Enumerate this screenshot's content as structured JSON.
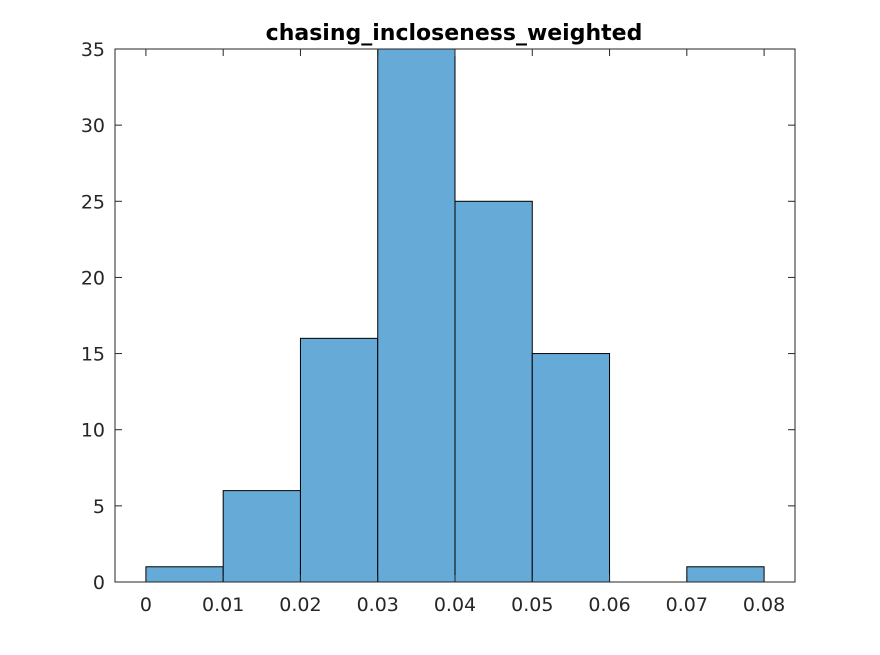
{
  "chart_data": {
    "type": "bar",
    "title": "chasing_incloseness_weighted",
    "xlabel": "",
    "ylabel": "",
    "bin_edges": [
      0,
      0.01,
      0.02,
      0.03,
      0.04,
      0.05,
      0.06,
      0.07,
      0.08
    ],
    "values": [
      1,
      6,
      16,
      35,
      25,
      15,
      0,
      1
    ],
    "xlim": [
      -0.004,
      0.084
    ],
    "ylim": [
      0,
      35
    ],
    "xticks": [
      0,
      0.01,
      0.02,
      0.03,
      0.04,
      0.05,
      0.06,
      0.07,
      0.08
    ],
    "xtick_labels": [
      "0",
      "0.01",
      "0.02",
      "0.03",
      "0.04",
      "0.05",
      "0.06",
      "0.07",
      "0.08"
    ],
    "yticks": [
      0,
      5,
      10,
      15,
      20,
      25,
      30,
      35
    ],
    "ytick_labels": [
      "0",
      "5",
      "10",
      "15",
      "20",
      "25",
      "30",
      "35"
    ],
    "grid": false,
    "box": true,
    "bar_color": "#66aad7",
    "edge_color": "#000000"
  }
}
